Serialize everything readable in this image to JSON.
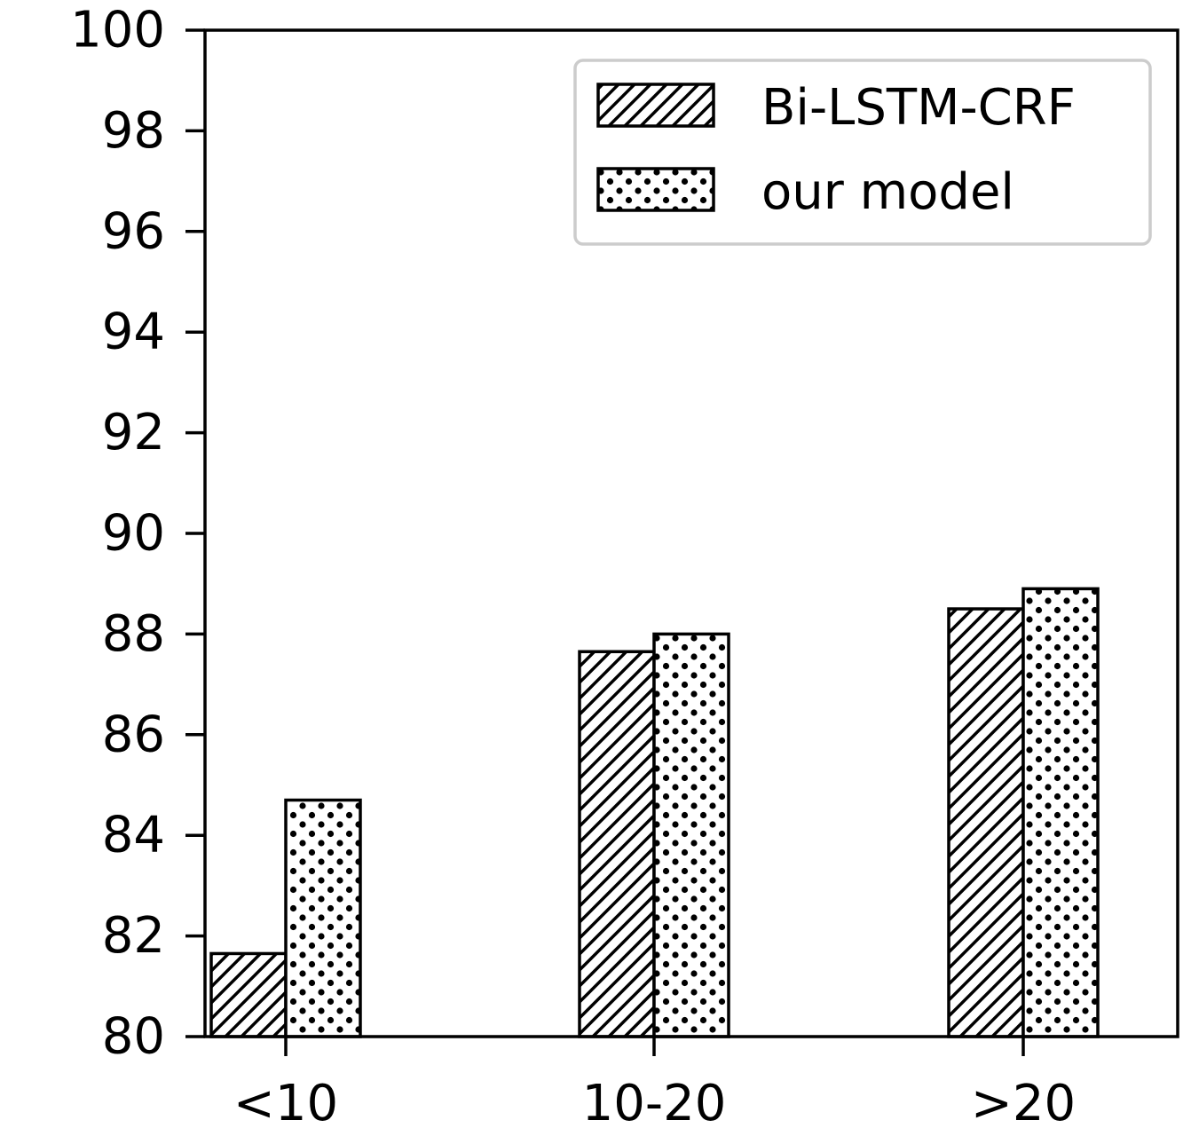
{
  "chart_data": {
    "type": "bar",
    "categories": [
      "<10",
      "10-20",
      ">20"
    ],
    "series": [
      {
        "name": "Bi-LSTM-CRF",
        "values": [
          81.65,
          87.65,
          88.5
        ],
        "pattern": "hatch"
      },
      {
        "name": "our model",
        "values": [
          84.7,
          88.0,
          88.9
        ],
        "pattern": "dots"
      }
    ],
    "ylim": [
      80,
      100
    ],
    "yticks": [
      "80",
      "82",
      "84",
      "86",
      "88",
      "90",
      "92",
      "94",
      "96",
      "98",
      "100"
    ],
    "legend_position": "top-right",
    "grid": false,
    "colors": {
      "bar_fill": "#ffffff",
      "edge": "#000000",
      "legend_border": "#cccccc"
    }
  }
}
